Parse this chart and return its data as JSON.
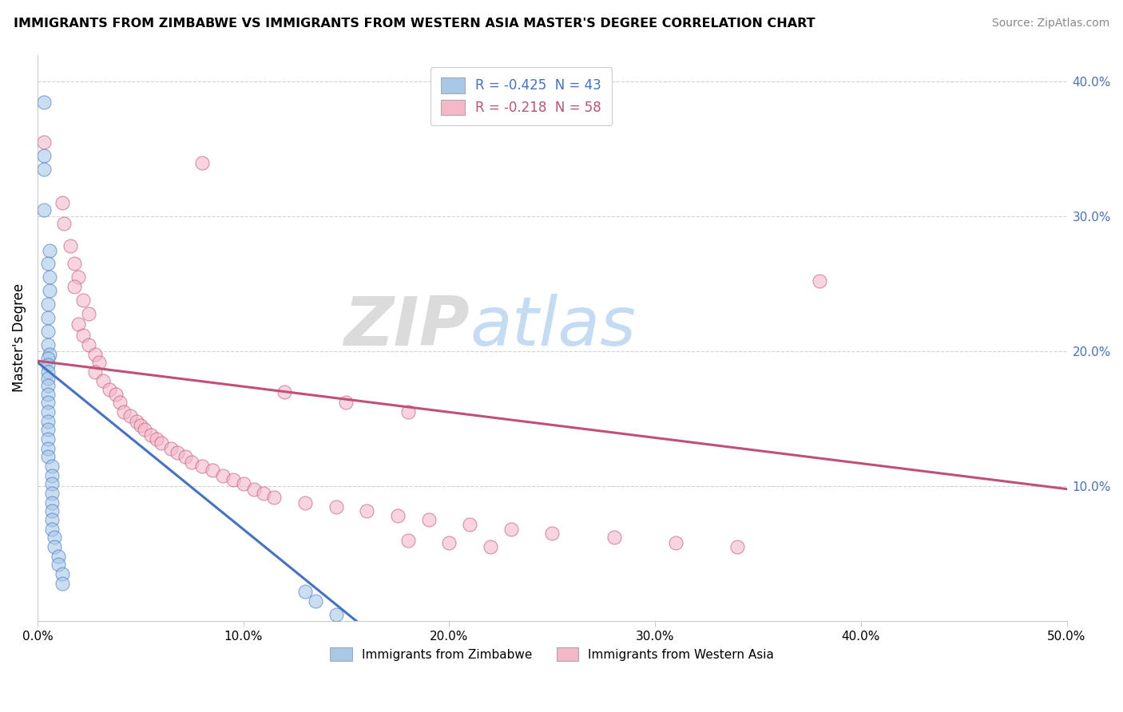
{
  "title": "IMMIGRANTS FROM ZIMBABWE VS IMMIGRANTS FROM WESTERN ASIA MASTER'S DEGREE CORRELATION CHART",
  "source": "Source: ZipAtlas.com",
  "ylabel": "Master's Degree",
  "xlim": [
    0.0,
    0.5
  ],
  "ylim": [
    0.0,
    0.42
  ],
  "xticks": [
    0.0,
    0.1,
    0.2,
    0.3,
    0.4,
    0.5
  ],
  "yticks": [
    0.1,
    0.2,
    0.3,
    0.4
  ],
  "xtick_labels": [
    "0.0%",
    "10.0%",
    "20.0%",
    "30.0%",
    "40.0%",
    "50.0%"
  ],
  "ytick_labels": [
    "10.0%",
    "20.0%",
    "30.0%",
    "40.0%"
  ],
  "color_blue": "#a8c8e8",
  "color_pink": "#f4b8c8",
  "line_blue": "#4472c4",
  "line_pink": "#c0507a",
  "legend_label_blue": "Immigrants from Zimbabwe",
  "legend_label_pink": "Immigrants from Western Asia",
  "watermark_zip": "ZIP",
  "watermark_atlas": "atlas",
  "blue_r": -0.425,
  "blue_n": 43,
  "pink_r": -0.218,
  "pink_n": 58,
  "blue_line_x": [
    0.0,
    0.155
  ],
  "blue_line_y": [
    0.192,
    0.0
  ],
  "pink_line_x": [
    0.0,
    0.5
  ],
  "pink_line_y": [
    0.193,
    0.098
  ],
  "blue_points": [
    [
      0.003,
      0.385
    ],
    [
      0.003,
      0.345
    ],
    [
      0.003,
      0.335
    ],
    [
      0.003,
      0.305
    ],
    [
      0.006,
      0.275
    ],
    [
      0.005,
      0.265
    ],
    [
      0.006,
      0.255
    ],
    [
      0.006,
      0.245
    ],
    [
      0.005,
      0.235
    ],
    [
      0.005,
      0.225
    ],
    [
      0.005,
      0.215
    ],
    [
      0.005,
      0.205
    ],
    [
      0.006,
      0.198
    ],
    [
      0.005,
      0.195
    ],
    [
      0.005,
      0.19
    ],
    [
      0.005,
      0.185
    ],
    [
      0.005,
      0.18
    ],
    [
      0.005,
      0.175
    ],
    [
      0.005,
      0.168
    ],
    [
      0.005,
      0.162
    ],
    [
      0.005,
      0.155
    ],
    [
      0.005,
      0.148
    ],
    [
      0.005,
      0.142
    ],
    [
      0.005,
      0.135
    ],
    [
      0.005,
      0.128
    ],
    [
      0.005,
      0.122
    ],
    [
      0.007,
      0.115
    ],
    [
      0.007,
      0.108
    ],
    [
      0.007,
      0.102
    ],
    [
      0.007,
      0.095
    ],
    [
      0.007,
      0.088
    ],
    [
      0.007,
      0.082
    ],
    [
      0.007,
      0.075
    ],
    [
      0.007,
      0.068
    ],
    [
      0.008,
      0.062
    ],
    [
      0.008,
      0.055
    ],
    [
      0.01,
      0.048
    ],
    [
      0.01,
      0.042
    ],
    [
      0.012,
      0.035
    ],
    [
      0.012,
      0.028
    ],
    [
      0.13,
      0.022
    ],
    [
      0.135,
      0.015
    ],
    [
      0.145,
      0.005
    ]
  ],
  "pink_points": [
    [
      0.003,
      0.355
    ],
    [
      0.012,
      0.31
    ],
    [
      0.013,
      0.295
    ],
    [
      0.016,
      0.278
    ],
    [
      0.018,
      0.265
    ],
    [
      0.02,
      0.255
    ],
    [
      0.018,
      0.248
    ],
    [
      0.022,
      0.238
    ],
    [
      0.025,
      0.228
    ],
    [
      0.02,
      0.22
    ],
    [
      0.022,
      0.212
    ],
    [
      0.025,
      0.205
    ],
    [
      0.028,
      0.198
    ],
    [
      0.03,
      0.192
    ],
    [
      0.028,
      0.185
    ],
    [
      0.032,
      0.178
    ],
    [
      0.035,
      0.172
    ],
    [
      0.038,
      0.168
    ],
    [
      0.04,
      0.162
    ],
    [
      0.042,
      0.155
    ],
    [
      0.045,
      0.152
    ],
    [
      0.048,
      0.148
    ],
    [
      0.05,
      0.145
    ],
    [
      0.052,
      0.142
    ],
    [
      0.055,
      0.138
    ],
    [
      0.058,
      0.135
    ],
    [
      0.06,
      0.132
    ],
    [
      0.065,
      0.128
    ],
    [
      0.068,
      0.125
    ],
    [
      0.072,
      0.122
    ],
    [
      0.075,
      0.118
    ],
    [
      0.08,
      0.115
    ],
    [
      0.085,
      0.112
    ],
    [
      0.09,
      0.108
    ],
    [
      0.095,
      0.105
    ],
    [
      0.1,
      0.102
    ],
    [
      0.105,
      0.098
    ],
    [
      0.11,
      0.095
    ],
    [
      0.115,
      0.092
    ],
    [
      0.13,
      0.088
    ],
    [
      0.145,
      0.085
    ],
    [
      0.16,
      0.082
    ],
    [
      0.175,
      0.078
    ],
    [
      0.19,
      0.075
    ],
    [
      0.21,
      0.072
    ],
    [
      0.23,
      0.068
    ],
    [
      0.25,
      0.065
    ],
    [
      0.28,
      0.062
    ],
    [
      0.31,
      0.058
    ],
    [
      0.34,
      0.055
    ],
    [
      0.18,
      0.06
    ],
    [
      0.2,
      0.058
    ],
    [
      0.22,
      0.055
    ],
    [
      0.38,
      0.252
    ],
    [
      0.08,
      0.34
    ],
    [
      0.12,
      0.17
    ],
    [
      0.15,
      0.162
    ],
    [
      0.18,
      0.155
    ]
  ]
}
